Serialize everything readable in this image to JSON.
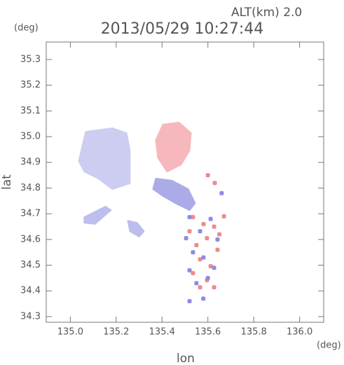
{
  "chart_data": {
    "type": "map",
    "title": "2013/05/29 10:27:44",
    "subtitle": "ALT(km)  2.0",
    "x_label": "lon",
    "y_label": "lat",
    "x_unit": "(deg)",
    "y_unit": "(deg)",
    "xlim": [
      134.895,
      136.105
    ],
    "ylim": [
      34.278,
      35.368
    ],
    "xticks": [
      {
        "value": 135,
        "label": "135.0"
      },
      {
        "value": 135.2,
        "label": "135.2"
      },
      {
        "value": 135.4,
        "label": "135.4"
      },
      {
        "value": 135.6,
        "label": "135.6"
      },
      {
        "value": 135.8,
        "label": "135.8"
      },
      {
        "value": 136,
        "label": "136.0"
      }
    ],
    "yticks": [
      34.3,
      34.4,
      34.5,
      34.6,
      34.7,
      34.8,
      34.9,
      {
        "value": 35,
        "label": "35.0"
      },
      35.1,
      35.2,
      35.3
    ],
    "regions": [
      {
        "color": "#cdcdf2",
        "lon": [
          135.037,
          135.067,
          135.183,
          135.245,
          135.26,
          135.26,
          135.183,
          135.122,
          135.061
        ],
        "lat": [
          34.905,
          35.019,
          35.033,
          35.014,
          34.946,
          34.818,
          34.796,
          34.837,
          34.864
        ]
      },
      {
        "color": "#f6b8bc",
        "lon": [
          135.404,
          135.474,
          135.526,
          135.52,
          135.483,
          135.422,
          135.382,
          135.373
        ],
        "lat": [
          35.047,
          35.055,
          35.014,
          34.946,
          34.891,
          34.864,
          34.918,
          34.987
        ]
      },
      {
        "color": "#ababe8",
        "lon": [
          135.373,
          135.443,
          135.514,
          135.544,
          135.52,
          135.459,
          135.404,
          135.361
        ],
        "lat": [
          34.837,
          34.829,
          34.796,
          34.741,
          34.714,
          34.741,
          34.769,
          34.796
        ]
      },
      {
        "color": "#bdbdee",
        "lon": [
          135.061,
          135.153,
          135.177,
          135.107,
          135.061
        ],
        "lat": [
          34.687,
          34.728,
          34.714,
          34.66,
          34.665
        ]
      },
      {
        "color": "#bdbdee",
        "lon": [
          135.251,
          135.291,
          135.321,
          135.3,
          135.26
        ],
        "lat": [
          34.673,
          34.665,
          34.632,
          34.611,
          34.632
        ]
      }
    ],
    "points": [
      {
        "color": "#ee8a90",
        "lon": [
          135.535,
          135.581,
          135.627,
          135.52,
          135.596,
          135.55,
          135.642,
          135.566,
          135.612,
          135.535,
          135.596,
          135.566,
          135.627,
          135.67,
          135.65,
          135.6,
          135.63
        ],
        "lat": [
          34.687,
          34.66,
          34.65,
          34.632,
          34.605,
          34.578,
          34.56,
          34.523,
          34.496,
          34.469,
          34.442,
          34.414,
          34.414,
          34.69,
          34.62,
          34.85,
          34.82
        ]
      },
      {
        "color": "#8c8ce4",
        "lon": [
          135.52,
          135.612,
          135.566,
          135.505,
          135.642,
          135.535,
          135.581,
          135.627,
          135.52,
          135.6,
          135.55,
          135.66,
          135.52,
          135.58
        ],
        "lat": [
          34.687,
          34.68,
          34.632,
          34.605,
          34.6,
          34.55,
          34.53,
          34.49,
          34.48,
          34.45,
          34.43,
          34.78,
          34.36,
          34.37
        ]
      }
    ]
  }
}
